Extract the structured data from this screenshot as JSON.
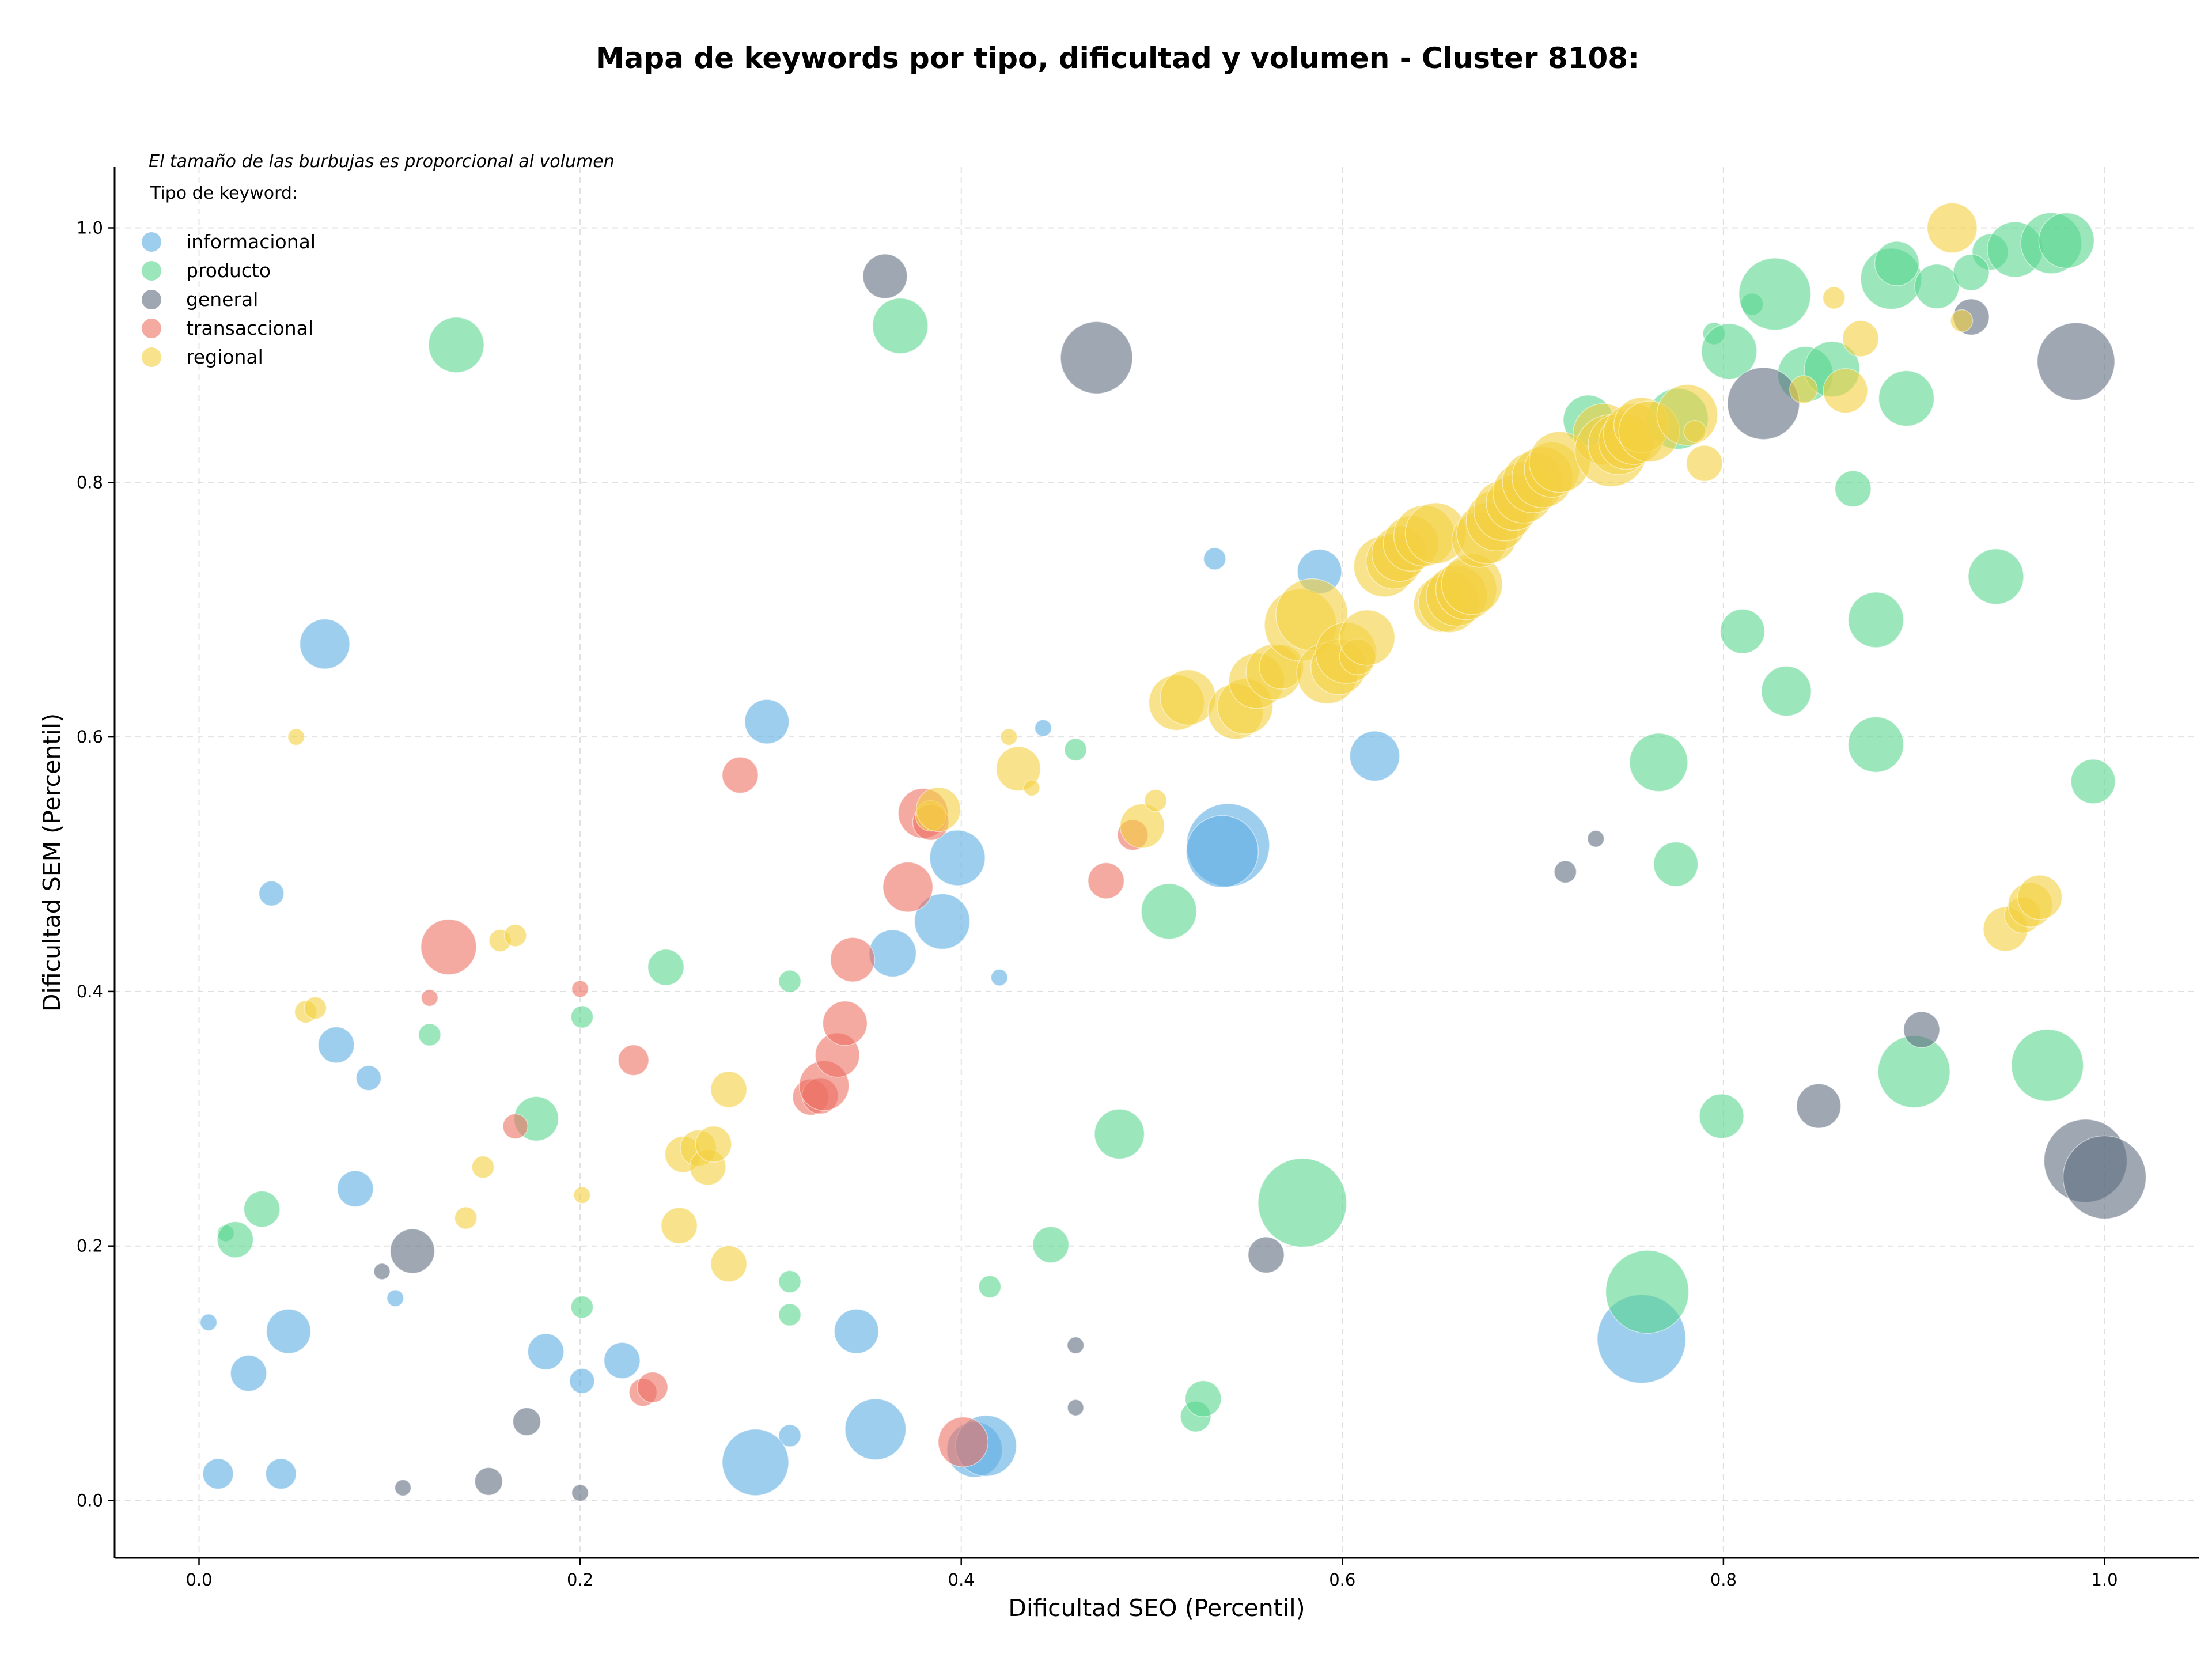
{
  "chart_data": {
    "type": "scatter",
    "title": "Mapa de keywords por tipo, dificultad y volumen - Cluster 8108:",
    "xlabel": "Dificultad SEO (Percentil)",
    "ylabel": "Dificultad SEM (Percentil)",
    "xlim": [
      -0.045,
      1.05
    ],
    "ylim": [
      -0.045,
      1.05
    ],
    "xticks": [
      "0.0",
      "0.2",
      "0.4",
      "0.6",
      "0.8",
      "1.0"
    ],
    "yticks": [
      "0.0",
      "0.2",
      "0.4",
      "0.6",
      "0.8",
      "1.0"
    ],
    "grid": true,
    "bubble_note": "El tamaño de las burbujas es proporcional al volumen",
    "legend": {
      "title": "Tipo de keyword:",
      "placement": "top-left"
    },
    "series": [
      {
        "name": "informacional",
        "color": "#5dade2",
        "points": [
          [
            0.005,
            0.14,
            0.6
          ],
          [
            0.01,
            0.021,
            1.1
          ],
          [
            0.026,
            0.1,
            1.3
          ],
          [
            0.038,
            0.477,
            0.9
          ],
          [
            0.043,
            0.021,
            1.1
          ],
          [
            0.047,
            0.133,
            1.6
          ],
          [
            0.066,
            0.673,
            1.8
          ],
          [
            0.072,
            0.358,
            1.3
          ],
          [
            0.089,
            0.332,
            0.9
          ],
          [
            0.082,
            0.245,
            1.3
          ],
          [
            0.103,
            0.159,
            0.6
          ],
          [
            0.182,
            0.117,
            1.3
          ],
          [
            0.201,
            0.094,
            0.9
          ],
          [
            0.222,
            0.11,
            1.3
          ],
          [
            0.298,
            0.612,
            1.6
          ],
          [
            0.31,
            0.051,
            0.8
          ],
          [
            0.292,
            0.03,
            2.4
          ],
          [
            0.345,
            0.133,
            1.6
          ],
          [
            0.355,
            0.056,
            2.2
          ],
          [
            0.364,
            0.43,
            1.7
          ],
          [
            0.39,
            0.455,
            2.0
          ],
          [
            0.398,
            0.505,
            2.0
          ],
          [
            0.407,
            0.04,
            2.0
          ],
          [
            0.413,
            0.043,
            2.2
          ],
          [
            0.42,
            0.411,
            0.6
          ],
          [
            0.443,
            0.607,
            0.6
          ],
          [
            0.533,
            0.74,
            0.8
          ],
          [
            0.54,
            0.515,
            3.0
          ],
          [
            0.537,
            0.51,
            2.6
          ],
          [
            0.588,
            0.73,
            1.6
          ],
          [
            0.617,
            0.585,
            1.8
          ],
          [
            0.757,
            0.127,
            3.2
          ]
        ]
      },
      {
        "name": "producto",
        "color": "#58d68d",
        "points": [
          [
            0.014,
            0.21,
            0.6
          ],
          [
            0.019,
            0.205,
            1.3
          ],
          [
            0.033,
            0.229,
            1.3
          ],
          [
            0.121,
            0.366,
            0.8
          ],
          [
            0.135,
            0.908,
            2.0
          ],
          [
            0.177,
            0.3,
            1.6
          ],
          [
            0.201,
            0.38,
            0.8
          ],
          [
            0.201,
            0.152,
            0.8
          ],
          [
            0.245,
            0.419,
            1.3
          ],
          [
            0.31,
            0.408,
            0.8
          ],
          [
            0.31,
            0.172,
            0.8
          ],
          [
            0.31,
            0.146,
            0.8
          ],
          [
            0.368,
            0.923,
            2.0
          ],
          [
            0.415,
            0.168,
            0.8
          ],
          [
            0.447,
            0.201,
            1.3
          ],
          [
            0.46,
            0.59,
            0.8
          ],
          [
            0.483,
            0.288,
            1.8
          ],
          [
            0.509,
            0.463,
            2.0
          ],
          [
            0.523,
            0.066,
            1.1
          ],
          [
            0.527,
            0.08,
            1.3
          ],
          [
            0.579,
            0.234,
            3.2
          ],
          [
            0.729,
            0.849,
            1.8
          ],
          [
            0.76,
            0.164,
            3.0
          ],
          [
            0.766,
            0.58,
            2.1
          ],
          [
            0.775,
            0.5,
            1.6
          ],
          [
            0.776,
            0.85,
            2.2
          ],
          [
            0.795,
            0.917,
            0.8
          ],
          [
            0.799,
            0.302,
            1.6
          ],
          [
            0.803,
            0.903,
            2.0
          ],
          [
            0.81,
            0.683,
            1.6
          ],
          [
            0.815,
            0.94,
            0.8
          ],
          [
            0.827,
            0.948,
            2.6
          ],
          [
            0.833,
            0.636,
            1.8
          ],
          [
            0.868,
            0.795,
            1.3
          ],
          [
            0.88,
            0.692,
            2.0
          ],
          [
            0.88,
            0.594,
            2.0
          ],
          [
            0.888,
            0.96,
            2.2
          ],
          [
            0.891,
            0.972,
            1.6
          ],
          [
            0.896,
            0.866,
            2.0
          ],
          [
            0.9,
            0.337,
            2.6
          ],
          [
            0.912,
            0.954,
            1.6
          ],
          [
            0.94,
            0.981,
            1.3
          ],
          [
            0.943,
            0.726,
            2.0
          ],
          [
            0.953,
            0.983,
            2.0
          ],
          [
            0.97,
            0.342,
            2.6
          ],
          [
            0.972,
            0.988,
            2.2
          ],
          [
            0.98,
            0.99,
            2.0
          ],
          [
            0.994,
            0.565,
            1.6
          ],
          [
            0.843,
            0.885,
            2.0
          ],
          [
            0.857,
            0.889,
            2.0
          ],
          [
            0.93,
            0.965,
            1.3
          ]
        ]
      },
      {
        "name": "general",
        "color": "#5d6d7e",
        "points": [
          [
            0.096,
            0.18,
            0.4
          ],
          [
            0.107,
            0.01,
            0.4
          ],
          [
            0.112,
            0.196,
            1.6
          ],
          [
            0.152,
            0.015,
            1.0
          ],
          [
            0.172,
            0.062,
            1.0
          ],
          [
            0.2,
            0.006,
            0.6
          ],
          [
            0.36,
            0.962,
            1.6
          ],
          [
            0.46,
            0.122,
            0.6
          ],
          [
            0.46,
            0.073,
            0.5
          ],
          [
            0.471,
            0.898,
            2.6
          ],
          [
            0.56,
            0.193,
            1.3
          ],
          [
            0.717,
            0.494,
            0.8
          ],
          [
            0.733,
            0.52,
            0.6
          ],
          [
            0.821,
            0.862,
            2.6
          ],
          [
            0.85,
            0.31,
            1.6
          ],
          [
            0.904,
            0.37,
            1.3
          ],
          [
            0.93,
            0.93,
            1.3
          ],
          [
            0.985,
            0.895,
            2.8
          ],
          [
            0.99,
            0.267,
            3.0
          ],
          [
            1.0,
            0.254,
            3.0
          ]
        ]
      },
      {
        "name": "transaccional",
        "color": "#ec7063",
        "points": [
          [
            0.121,
            0.395,
            0.6
          ],
          [
            0.131,
            0.435,
            2.0
          ],
          [
            0.166,
            0.294,
            0.9
          ],
          [
            0.2,
            0.402,
            0.6
          ],
          [
            0.228,
            0.346,
            1.1
          ],
          [
            0.233,
            0.085,
            1.0
          ],
          [
            0.238,
            0.089,
            1.1
          ],
          [
            0.284,
            0.57,
            1.3
          ],
          [
            0.321,
            0.317,
            1.3
          ],
          [
            0.326,
            0.318,
            1.3
          ],
          [
            0.328,
            0.326,
            1.8
          ],
          [
            0.335,
            0.35,
            1.6
          ],
          [
            0.339,
            0.375,
            1.6
          ],
          [
            0.343,
            0.425,
            1.6
          ],
          [
            0.372,
            0.482,
            1.8
          ],
          [
            0.38,
            0.54,
            1.8
          ],
          [
            0.384,
            0.533,
            1.3
          ],
          [
            0.401,
            0.046,
            1.8
          ],
          [
            0.476,
            0.487,
            1.3
          ],
          [
            0.49,
            0.523,
            1.1
          ]
        ]
      },
      {
        "name": "regional",
        "color": "#f4d03f",
        "points": [
          [
            0.051,
            0.6,
            0.6
          ],
          [
            0.056,
            0.384,
            0.8
          ],
          [
            0.061,
            0.387,
            0.8
          ],
          [
            0.14,
            0.222,
            0.8
          ],
          [
            0.149,
            0.262,
            0.8
          ],
          [
            0.158,
            0.44,
            0.8
          ],
          [
            0.166,
            0.444,
            0.8
          ],
          [
            0.201,
            0.24,
            0.6
          ],
          [
            0.252,
            0.216,
            1.3
          ],
          [
            0.254,
            0.272,
            1.3
          ],
          [
            0.262,
            0.277,
            1.3
          ],
          [
            0.267,
            0.262,
            1.3
          ],
          [
            0.27,
            0.28,
            1.3
          ],
          [
            0.278,
            0.186,
            1.3
          ],
          [
            0.278,
            0.323,
            1.3
          ],
          [
            0.384,
            0.538,
            1.1
          ],
          [
            0.388,
            0.543,
            1.6
          ],
          [
            0.425,
            0.6,
            0.6
          ],
          [
            0.43,
            0.575,
            1.6
          ],
          [
            0.437,
            0.56,
            0.4
          ],
          [
            0.495,
            0.53,
            1.6
          ],
          [
            0.502,
            0.55,
            0.8
          ],
          [
            0.513,
            0.627,
            2.0
          ],
          [
            0.519,
            0.631,
            2.0
          ],
          [
            0.544,
            0.62,
            2.0
          ],
          [
            0.549,
            0.624,
            2.0
          ],
          [
            0.555,
            0.644,
            2.0
          ],
          [
            0.564,
            0.651,
            2.0
          ],
          [
            0.568,
            0.655,
            1.6
          ],
          [
            0.578,
            0.688,
            2.6
          ],
          [
            0.584,
            0.696,
            2.6
          ],
          [
            0.592,
            0.65,
            2.2
          ],
          [
            0.598,
            0.655,
            2.0
          ],
          [
            0.602,
            0.666,
            2.2
          ],
          [
            0.608,
            0.663,
            1.3
          ],
          [
            0.613,
            0.678,
            2.0
          ],
          [
            0.622,
            0.734,
            2.2
          ],
          [
            0.627,
            0.738,
            2.0
          ],
          [
            0.63,
            0.744,
            2.0
          ],
          [
            0.636,
            0.752,
            2.0
          ],
          [
            0.643,
            0.758,
            2.2
          ],
          [
            0.649,
            0.76,
            2.2
          ],
          [
            0.652,
            0.704,
            2.0
          ],
          [
            0.656,
            0.706,
            2.2
          ],
          [
            0.66,
            0.711,
            2.2
          ],
          [
            0.665,
            0.716,
            2.2
          ],
          [
            0.668,
            0.72,
            2.2
          ],
          [
            0.672,
            0.755,
            2.0
          ],
          [
            0.676,
            0.76,
            2.2
          ],
          [
            0.681,
            0.77,
            2.2
          ],
          [
            0.685,
            0.778,
            2.2
          ],
          [
            0.69,
            0.784,
            2.0
          ],
          [
            0.695,
            0.792,
            2.2
          ],
          [
            0.7,
            0.8,
            2.2
          ],
          [
            0.705,
            0.804,
            2.2
          ],
          [
            0.71,
            0.81,
            2.0
          ],
          [
            0.714,
            0.816,
            2.2
          ],
          [
            0.737,
            0.838,
            2.2
          ],
          [
            0.741,
            0.825,
            2.6
          ],
          [
            0.745,
            0.83,
            2.2
          ],
          [
            0.749,
            0.832,
            2.0
          ],
          [
            0.753,
            0.838,
            2.2
          ],
          [
            0.757,
            0.845,
            2.0
          ],
          [
            0.761,
            0.84,
            2.2
          ],
          [
            0.781,
            0.853,
            2.2
          ],
          [
            0.785,
            0.84,
            0.8
          ],
          [
            0.79,
            0.815,
            1.3
          ],
          [
            0.842,
            0.873,
            1.0
          ],
          [
            0.858,
            0.945,
            0.8
          ],
          [
            0.864,
            0.872,
            1.6
          ],
          [
            0.872,
            0.913,
            1.3
          ],
          [
            0.92,
            1.0,
            1.8
          ],
          [
            0.925,
            0.927,
            0.8
          ],
          [
            0.948,
            0.449,
            1.6
          ],
          [
            0.957,
            0.46,
            1.3
          ],
          [
            0.961,
            0.468,
            1.6
          ],
          [
            0.966,
            0.474,
            1.6
          ]
        ]
      }
    ]
  }
}
